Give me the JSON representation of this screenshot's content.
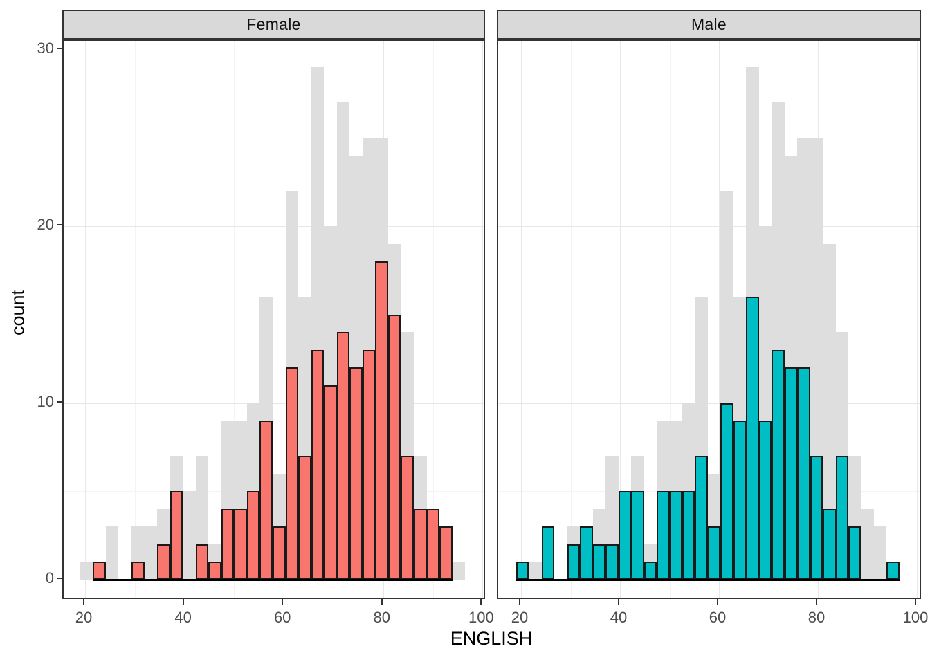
{
  "figure": {
    "x_axis_title": "ENGLISH",
    "y_axis_title": "count",
    "facets": [
      {
        "label": "Female"
      },
      {
        "label": "Male"
      }
    ]
  },
  "chart_data": {
    "type": "histogram",
    "description": "Faceted histogram of ENGLISH scores by gender; light gray background bars show the distribution of all students repeated in each facet",
    "xlabel": "ENGLISH",
    "ylabel": "count",
    "facet_labels": [
      "Female",
      "Male"
    ],
    "bins": {
      "start": 19.0,
      "width": 2.583,
      "n": 30
    },
    "x_ticks": [
      20,
      40,
      60,
      80,
      100
    ],
    "x_minor_ticks": [
      30,
      50,
      70,
      90
    ],
    "y_ticks": [
      0,
      10,
      20,
      30
    ],
    "y_minor_ticks": [
      5,
      15,
      25
    ],
    "xlim": [
      15.7,
      100.9
    ],
    "ylim": [
      -1.2,
      30.6
    ],
    "grid": true,
    "legend_position": "none",
    "colors": {
      "female_fill": "#F8766D",
      "male_fill": "#00BFC4",
      "all_fill": "#DEDEDE",
      "bar_outline": "#1a1a1a",
      "strip_background": "#D9D9D9",
      "panel_border": "#333333",
      "tick_label_color": "#4D4D4D"
    },
    "series": [
      {
        "name": "all_students",
        "fill": "#DEDEDE",
        "outlined": false,
        "counts": [
          1,
          1,
          3,
          0,
          3,
          3,
          4,
          7,
          5,
          7,
          2,
          9,
          9,
          10,
          16,
          6,
          22,
          16,
          29,
          20,
          27,
          24,
          25,
          25,
          19,
          14,
          7,
          4,
          3,
          1
        ]
      },
      {
        "name": "Female",
        "fill": "#F8766D",
        "outlined": true,
        "counts": [
          0,
          1,
          0,
          0,
          1,
          0,
          2,
          5,
          0,
          2,
          1,
          4,
          4,
          5,
          9,
          3,
          12,
          7,
          13,
          11,
          14,
          12,
          13,
          18,
          15,
          7,
          4,
          4,
          3,
          0
        ]
      },
      {
        "name": "Male",
        "fill": "#00BFC4",
        "outlined": true,
        "counts": [
          1,
          0,
          3,
          0,
          2,
          3,
          2,
          2,
          5,
          5,
          1,
          5,
          5,
          5,
          7,
          3,
          10,
          9,
          16,
          9,
          13,
          12,
          12,
          7,
          4,
          7,
          3,
          0,
          0,
          1
        ]
      }
    ]
  }
}
